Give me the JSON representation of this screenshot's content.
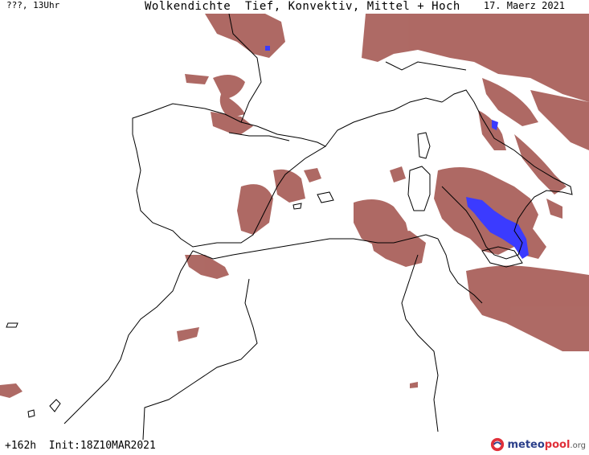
{
  "header": {
    "left_label": "???, 13Uhr",
    "title": "Wolkendichte  Tief, Konvektiv, Mittel + Hoch",
    "date": "17. Maerz 2021"
  },
  "footer": {
    "forecast_info": "+162h  Init:18Z10MAR2021"
  },
  "logo": {
    "name_part1": "meteo",
    "name_part2": "pool",
    "name_part3": ".org"
  },
  "colors": {
    "cloud": "#a0504a",
    "cloud_light": "#c98b86",
    "precipitation": "#3b3bff",
    "coastline": "#000000"
  }
}
